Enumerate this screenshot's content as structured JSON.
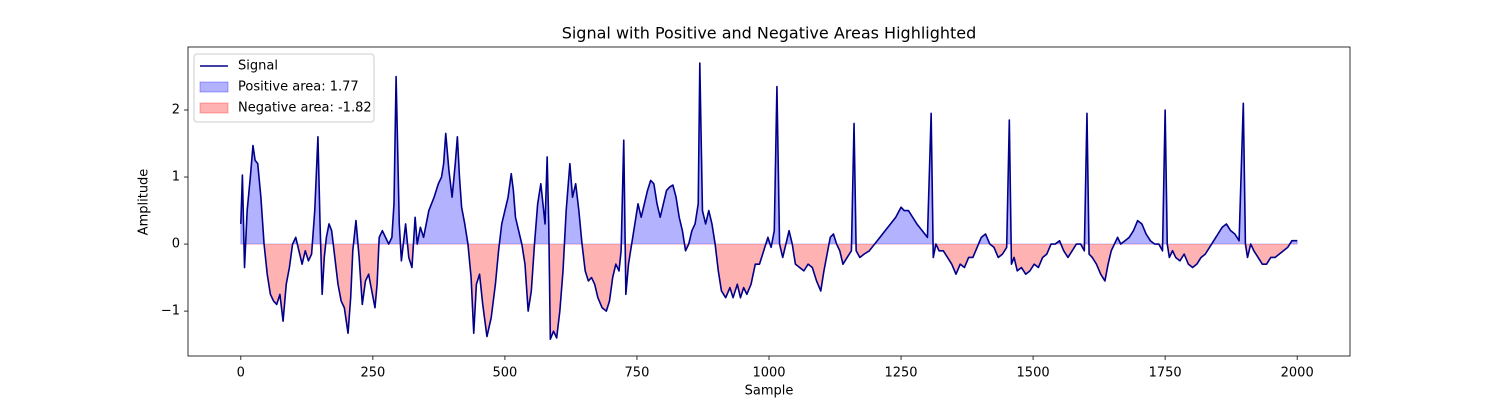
{
  "chart_data": {
    "type": "line",
    "title": "Signal with Positive and Negative Areas Highlighted",
    "xlabel": "Sample",
    "ylabel": "Amplitude",
    "x": [
      0,
      3,
      7,
      12,
      18,
      23,
      27,
      32,
      38,
      44,
      50,
      56,
      62,
      68,
      74,
      80,
      86,
      92,
      98,
      104,
      110,
      116,
      122,
      128,
      134,
      140,
      146,
      150,
      154,
      158,
      162,
      167,
      172,
      178,
      184,
      190,
      196,
      203,
      208,
      212,
      218,
      224,
      230,
      236,
      242,
      248,
      254,
      258,
      262,
      268,
      274,
      280,
      286,
      290,
      294,
      300,
      304,
      312,
      318,
      324,
      330,
      334,
      340,
      346,
      356,
      366,
      374,
      380,
      384,
      388,
      394,
      400,
      406,
      410,
      414,
      418,
      424,
      430,
      436,
      441,
      446,
      452,
      458,
      466,
      474,
      482,
      488,
      494,
      500,
      506,
      512,
      516,
      520,
      526,
      532,
      538,
      544,
      550,
      556,
      562,
      568,
      572,
      576,
      580,
      583,
      586,
      592,
      598,
      604,
      610,
      616,
      623,
      628,
      634,
      640,
      646,
      652,
      658,
      664,
      670,
      676,
      684,
      692,
      698,
      704,
      710,
      716,
      720,
      725,
      729,
      734,
      740,
      746,
      752,
      758,
      764,
      770,
      776,
      782,
      788,
      794,
      800,
      806,
      812,
      818,
      824,
      830,
      836,
      842,
      848,
      854,
      860,
      866,
      869,
      874,
      880,
      886,
      892,
      898,
      904,
      910,
      918,
      926,
      932,
      940,
      946,
      952,
      958,
      966,
      974,
      982,
      990,
      998,
      1004,
      1010,
      1015,
      1020,
      1026,
      1032,
      1038,
      1044,
      1050,
      1058,
      1066,
      1074,
      1082,
      1090,
      1098,
      1104,
      1110,
      1116,
      1122,
      1128,
      1134,
      1140,
      1148,
      1156,
      1161,
      1165,
      1172,
      1180,
      1190,
      1200,
      1210,
      1220,
      1230,
      1240,
      1250,
      1256,
      1264,
      1272,
      1280,
      1290,
      1300,
      1307,
      1311,
      1316,
      1322,
      1330,
      1338,
      1346,
      1354,
      1362,
      1370,
      1378,
      1386,
      1394,
      1402,
      1410,
      1418,
      1426,
      1434,
      1442,
      1450,
      1455,
      1459,
      1464,
      1470,
      1478,
      1486,
      1494,
      1502,
      1510,
      1518,
      1526,
      1534,
      1542,
      1550,
      1558,
      1566,
      1574,
      1582,
      1590,
      1597,
      1602,
      1606,
      1612,
      1620,
      1628,
      1636,
      1642,
      1648,
      1654,
      1660,
      1666,
      1674,
      1682,
      1690,
      1698,
      1706,
      1714,
      1722,
      1730,
      1738,
      1745,
      1750,
      1754,
      1758,
      1764,
      1770,
      1778,
      1786,
      1794,
      1802,
      1810,
      1818,
      1826,
      1834,
      1842,
      1850,
      1858,
      1866,
      1874,
      1882,
      1890,
      1898,
      1902,
      1906,
      1912,
      1918,
      1926,
      1934,
      1942,
      1950,
      1958,
      1966,
      1974,
      1982,
      1990,
      2000
    ],
    "series": [
      {
        "name": "Signal",
        "color": "#00008b",
        "values": [
          0.3,
          1.03,
          -0.35,
          0.5,
          1.0,
          1.47,
          1.25,
          1.2,
          0.7,
          0,
          -0.45,
          -0.75,
          -0.85,
          -0.9,
          -0.75,
          -1.15,
          -0.6,
          -0.35,
          0,
          0.1,
          -0.1,
          -0.3,
          -0.1,
          -0.25,
          -0.15,
          0.5,
          1.6,
          0.3,
          -0.75,
          -0.2,
          0.1,
          0.3,
          0.2,
          -0.2,
          -0.6,
          -0.85,
          -0.95,
          -1.33,
          -0.8,
          -0.1,
          0.35,
          -0.2,
          -0.9,
          -0.55,
          -0.45,
          -0.7,
          -0.95,
          -0.6,
          0.1,
          0.2,
          0.1,
          0,
          0.1,
          0.6,
          2.5,
          0.3,
          -0.25,
          0.3,
          -0.2,
          -0.35,
          0.4,
          0,
          0.25,
          0.1,
          0.5,
          0.7,
          0.9,
          1.0,
          1.2,
          1.65,
          1.1,
          0.7,
          1.2,
          1.6,
          1.0,
          0.55,
          0.3,
          0,
          -0.5,
          -1.33,
          -0.6,
          -0.45,
          -0.9,
          -1.38,
          -1.1,
          -0.6,
          -0.1,
          0.3,
          0.5,
          0.7,
          1.05,
          0.8,
          0.4,
          0.2,
          0,
          -0.3,
          -1.0,
          -0.7,
          0,
          0.6,
          0.9,
          0.6,
          0.3,
          1.3,
          0.3,
          -1.42,
          -1.3,
          -1.4,
          -1.0,
          -0.4,
          0.5,
          1.2,
          0.7,
          0.9,
          0.5,
          0,
          -0.4,
          -0.55,
          -0.5,
          -0.6,
          -0.8,
          -0.95,
          -1.0,
          -0.85,
          -0.5,
          -0.3,
          -0.4,
          -0.1,
          1.55,
          -0.75,
          -0.3,
          0,
          0.3,
          0.6,
          0.4,
          0.6,
          0.8,
          0.95,
          0.9,
          0.6,
          0.4,
          0.6,
          0.8,
          0.85,
          0.88,
          0.7,
          0.4,
          0.2,
          -0.1,
          0,
          0.2,
          0.3,
          0.6,
          2.7,
          0.5,
          0.3,
          0.5,
          0.3,
          0,
          -0.4,
          -0.7,
          -0.8,
          -0.65,
          -0.8,
          -0.6,
          -0.8,
          -0.65,
          -0.75,
          -0.6,
          -0.3,
          -0.3,
          -0.1,
          0.1,
          -0.05,
          0.2,
          2.35,
          0,
          -0.2,
          0,
          0.2,
          0,
          -0.3,
          -0.35,
          -0.4,
          -0.3,
          -0.35,
          -0.55,
          -0.7,
          -0.4,
          -0.15,
          0.1,
          0.15,
          0,
          -0.1,
          -0.3,
          -0.2,
          -0.1,
          1.8,
          -0.1,
          -0.2,
          -0.15,
          -0.1,
          0,
          0.1,
          0.2,
          0.3,
          0.4,
          0.55,
          0.5,
          0.5,
          0.4,
          0.3,
          0.2,
          0.1,
          1.95,
          -0.2,
          0,
          -0.1,
          -0.1,
          -0.2,
          -0.3,
          -0.45,
          -0.3,
          -0.35,
          -0.2,
          -0.2,
          -0.05,
          0.1,
          0.15,
          0,
          -0.05,
          -0.2,
          -0.15,
          -0.05,
          1.85,
          -0.3,
          -0.2,
          -0.4,
          -0.35,
          -0.45,
          -0.4,
          -0.3,
          -0.35,
          -0.2,
          -0.15,
          0,
          0,
          0.05,
          -0.1,
          -0.2,
          -0.1,
          0,
          0,
          -0.1,
          1.95,
          -0.15,
          -0.2,
          -0.3,
          -0.45,
          -0.55,
          -0.3,
          -0.1,
          0,
          0.1,
          0,
          0.05,
          0.1,
          0.2,
          0.35,
          0.3,
          0.15,
          0.05,
          0,
          0,
          -0.1,
          2.0,
          0,
          -0.2,
          -0.1,
          -0.2,
          -0.25,
          -0.15,
          -0.3,
          -0.35,
          -0.3,
          -0.2,
          -0.15,
          -0.05,
          0.05,
          0.15,
          0.25,
          0.3,
          0.2,
          0.15,
          0.05,
          2.1,
          0,
          -0.2,
          0,
          -0.1,
          -0.2,
          -0.3,
          -0.3,
          -0.2,
          -0.2,
          -0.15,
          -0.1,
          -0.05,
          0.05,
          0.05
        ]
      },
      {
        "name": "Positive area: 1.77",
        "color": "#0000ff",
        "fill": "positive"
      },
      {
        "name": "Negative area: -1.82",
        "color": "#ff0000",
        "fill": "negative"
      }
    ],
    "xlim": [
      -100,
      2100
    ],
    "ylim": [
      -1.67,
      2.94
    ],
    "xticks": [
      0,
      250,
      500,
      750,
      1000,
      1250,
      1500,
      1750,
      2000
    ],
    "yticks": [
      {
        "value": -1,
        "label": "−1"
      },
      0,
      1,
      2
    ],
    "legend": "upper left"
  }
}
